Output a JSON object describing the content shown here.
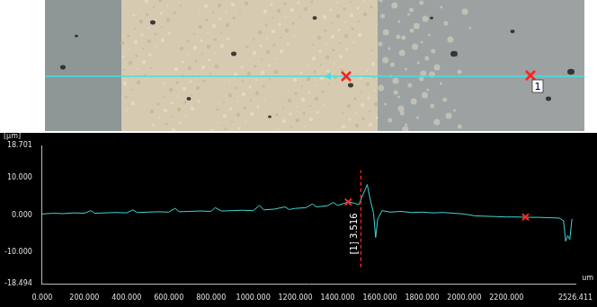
{
  "image": {
    "marker_label": "1"
  },
  "chart_data": {
    "type": "line",
    "ylabel": "[μm]",
    "xlabel": "um",
    "xlim": [
      0,
      2526.411
    ],
    "xticks": [
      {
        "value": 0,
        "label": "0.000"
      },
      {
        "value": 200,
        "label": "200.000"
      },
      {
        "value": 400,
        "label": "400.000"
      },
      {
        "value": 600,
        "label": "600.000"
      },
      {
        "value": 800,
        "label": "800.000"
      },
      {
        "value": 1000,
        "label": "1000.000"
      },
      {
        "value": 1200,
        "label": "1200.000"
      },
      {
        "value": 1400,
        "label": "1400.000"
      },
      {
        "value": 1600,
        "label": "1600.000"
      },
      {
        "value": 1800,
        "label": "1800.000"
      },
      {
        "value": 2000,
        "label": "2000.000"
      },
      {
        "value": 2200,
        "label": "2200.000"
      },
      {
        "value": 2526.411,
        "label": "2526.411"
      }
    ],
    "ylim": [
      -18.494,
      18.701
    ],
    "yticks": [
      {
        "value": -18.494,
        "label": "-18.494"
      },
      {
        "value": -10,
        "label": "-10.000"
      },
      {
        "value": 0,
        "label": "0.000"
      },
      {
        "value": 10,
        "label": "10.000"
      },
      {
        "value": 18.701,
        "label": "18.701"
      }
    ],
    "grid": false,
    "series": [
      {
        "type": "line",
        "color": "#3fd8d8",
        "x": [
          0,
          50,
          100,
          150,
          200,
          230,
          250,
          300,
          350,
          400,
          430,
          450,
          500,
          550,
          600,
          630,
          650,
          700,
          750,
          800,
          820,
          850,
          900,
          950,
          1000,
          1030,
          1050,
          1100,
          1150,
          1170,
          1200,
          1250,
          1280,
          1300,
          1350,
          1380,
          1400,
          1450,
          1480,
          1500,
          1520,
          1540,
          1555,
          1570,
          1580,
          1590,
          1610,
          1650,
          1700,
          1750,
          1800,
          1850,
          1900,
          1950,
          2000,
          2050,
          2100,
          2150,
          2200,
          2250,
          2300,
          2350,
          2400,
          2450,
          2470,
          2480,
          2490,
          2500,
          2510
        ],
        "values": [
          0.3,
          0.5,
          0.4,
          0.6,
          0.5,
          1.2,
          0.5,
          0.6,
          0.7,
          0.6,
          1.4,
          0.7,
          0.8,
          0.9,
          0.8,
          1.8,
          0.9,
          1.0,
          1.1,
          1.0,
          2.0,
          1.1,
          1.2,
          1.3,
          1.2,
          2.6,
          1.4,
          1.6,
          2.2,
          1.5,
          1.8,
          2.0,
          3.0,
          2.2,
          2.5,
          3.4,
          2.6,
          3.5,
          3.2,
          2.8,
          5.5,
          8.2,
          4.0,
          0.5,
          -6.0,
          -1.0,
          1.2,
          0.8,
          1.0,
          0.7,
          0.8,
          0.6,
          0.7,
          0.5,
          0.3,
          -0.2,
          -0.3,
          -0.4,
          -0.5,
          -0.5,
          -0.6,
          -0.6,
          -0.7,
          -0.8,
          -1.5,
          -7.0,
          -5.5,
          -6.5,
          -1.0
        ]
      },
      {
        "type": "scatter",
        "color": "#ff2a2a",
        "marker": "x",
        "x": [
          1450,
          2290
        ],
        "values": [
          3.5,
          -0.5
        ]
      }
    ],
    "marker_line": {
      "x": 1510,
      "y": [
        -14,
        12
      ],
      "color": "#ff2020",
      "line_style": "dashed"
    },
    "annotation": {
      "text": "[1] 3.516",
      "x": 1480,
      "y": -5
    }
  }
}
